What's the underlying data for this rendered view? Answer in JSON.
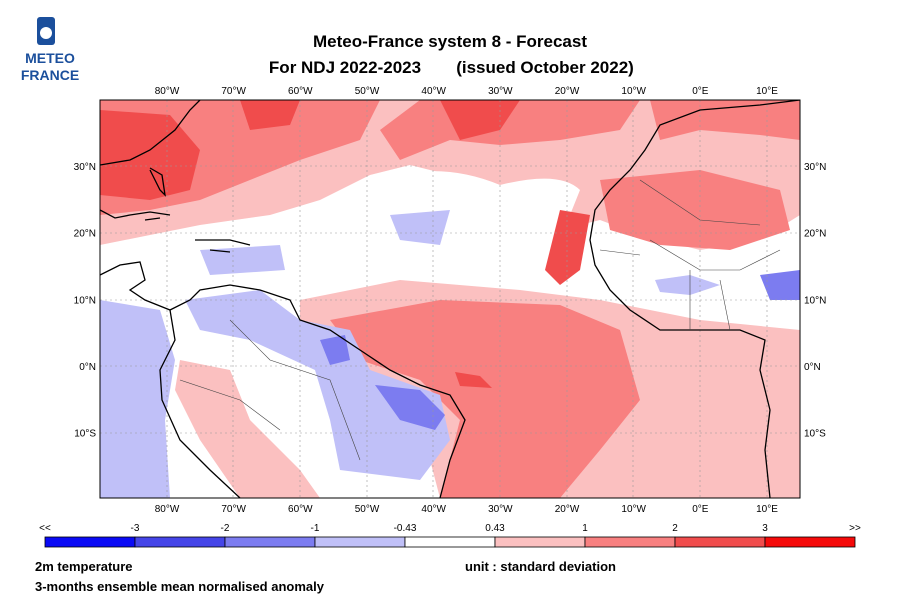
{
  "logo": {
    "line1": "METEO",
    "line2": "FRANCE"
  },
  "header": {
    "title": "Meteo-France system 8  -  Forecast",
    "period": "For NDJ 2022-2023",
    "issued": "(issued October 2022)"
  },
  "map": {
    "lon_labels": [
      "80°W",
      "70°W",
      "60°W",
      "50°W",
      "40°W",
      "30°W",
      "20°W",
      "10°W",
      "0°E",
      "10°E"
    ],
    "lat_labels": [
      "30°N",
      "20°N",
      "10°N",
      "0°N",
      "10°S"
    ]
  },
  "colorbar": {
    "labels": [
      "<<",
      "-3",
      "-2",
      "-1",
      "-0.43",
      "0.43",
      "1",
      "2",
      "3",
      ">>"
    ],
    "colors": [
      "#0a0af5",
      "#4545e8",
      "#7c7cf0",
      "#c0c0f8",
      "#ffffff",
      "#fbc0c0",
      "#f88080",
      "#f04c4c",
      "#f50a0a"
    ]
  },
  "footer": {
    "variable": "2m temperature",
    "description": "3-months ensemble mean normalised anomaly",
    "unit": "unit : standard deviation"
  }
}
